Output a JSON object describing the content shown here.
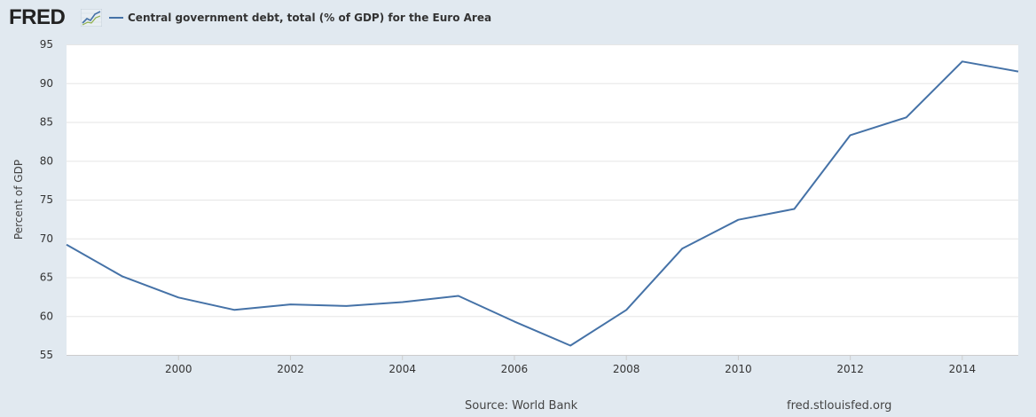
{
  "header": {
    "logo_text": "FRED",
    "legend_label": "Central government debt, total (% of GDP) for the Euro Area"
  },
  "footer": {
    "source": "Source: World Bank",
    "site": "fred.stlouisfed.org"
  },
  "colors": {
    "series": "#4572a7",
    "background": "#e1e9f0",
    "plot": "#ffffff",
    "grid": "#e6e6e6"
  },
  "chart_data": {
    "type": "line",
    "title": "",
    "xlabel": "",
    "ylabel": "Percent of GDP",
    "xlim": [
      1998,
      2015
    ],
    "ylim": [
      55,
      95
    ],
    "x_ticks": [
      "2000",
      "2002",
      "2004",
      "2006",
      "2008",
      "2010",
      "2012",
      "2014"
    ],
    "y_ticks": [
      "55",
      "60",
      "65",
      "70",
      "75",
      "80",
      "85",
      "90",
      "95"
    ],
    "grid": true,
    "legend": "top-left",
    "series": [
      {
        "name": "Central government debt, total (% of GDP) for the Euro Area",
        "x": [
          1998,
          1999,
          2000,
          2001,
          2002,
          2003,
          2004,
          2005,
          2006,
          2007,
          2008,
          2009,
          2010,
          2011,
          2012,
          2013,
          2014,
          2015
        ],
        "y": [
          69.2,
          65.1,
          62.4,
          60.8,
          61.5,
          61.3,
          61.8,
          62.6,
          59.3,
          56.2,
          60.8,
          68.7,
          72.4,
          73.8,
          83.3,
          85.6,
          92.8,
          91.5
        ]
      }
    ]
  }
}
